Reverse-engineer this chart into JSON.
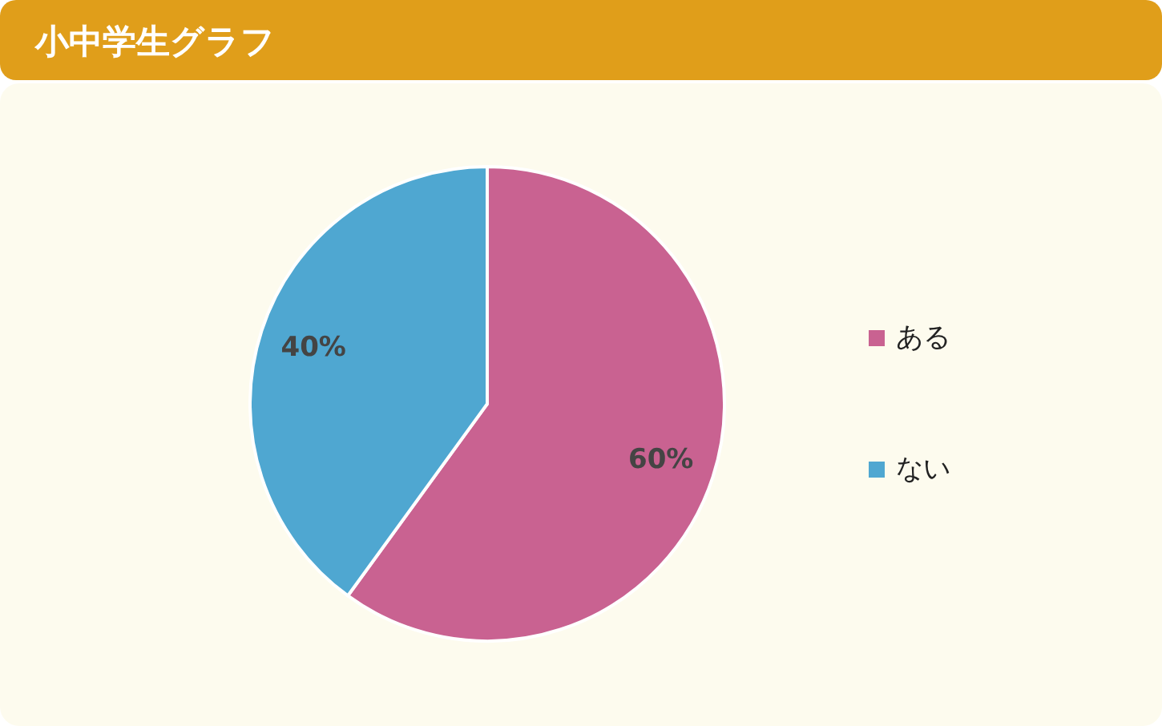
{
  "chart_data": {
    "type": "pie",
    "title": "小中学生グラフ",
    "categories": [
      "ある",
      "ない"
    ],
    "values": [
      60,
      40
    ],
    "colors": [
      "#c96291",
      "#4fa7d1"
    ],
    "value_labels": [
      "60%",
      "40%"
    ],
    "legend": "right"
  }
}
